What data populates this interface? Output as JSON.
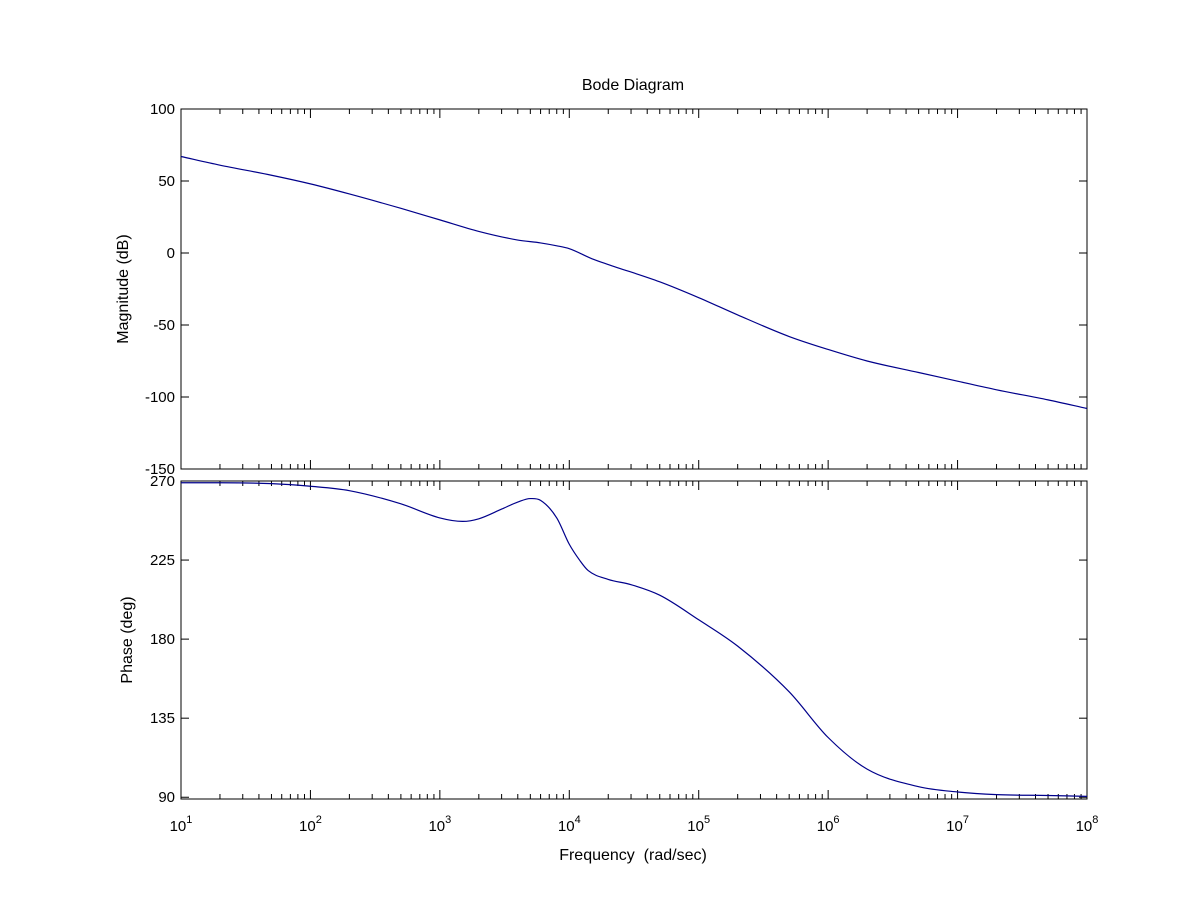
{
  "chart_data": {
    "type": "line",
    "title": "Bode Diagram",
    "xlabel": "Frequency  (rad/sec)",
    "xscale": "log",
    "xlim": [
      10,
      100000000
    ],
    "x_ticks": [
      {
        "value": 10,
        "base": "10",
        "exp": "1"
      },
      {
        "value": 100,
        "base": "10",
        "exp": "2"
      },
      {
        "value": 1000,
        "base": "10",
        "exp": "3"
      },
      {
        "value": 10000,
        "base": "10",
        "exp": "4"
      },
      {
        "value": 100000,
        "base": "10",
        "exp": "5"
      },
      {
        "value": 1000000,
        "base": "10",
        "exp": "6"
      },
      {
        "value": 10000000,
        "base": "10",
        "exp": "7"
      },
      {
        "value": 100000000,
        "base": "10",
        "exp": "8"
      }
    ],
    "line_color": "#00008b",
    "grid": false,
    "panels": [
      {
        "id": "magnitude",
        "ylabel": "Magnitude (dB)",
        "ylim": [
          -150,
          100
        ],
        "y_ticks": [
          100,
          50,
          0,
          -50,
          -100,
          -150
        ],
        "y_tick_labels": [
          "100",
          "50",
          "0",
          "-50",
          "-100",
          "-150"
        ],
        "series": {
          "x": [
            10,
            20,
            50,
            100,
            200,
            500,
            1000,
            2000,
            4000,
            6000,
            8000,
            10000,
            15000,
            20000,
            50000,
            100000,
            200000,
            500000,
            1000000,
            2000000,
            5000000,
            10000000,
            20000000,
            50000000,
            100000000
          ],
          "y": [
            67,
            61,
            54,
            48,
            41,
            31,
            23,
            15,
            9,
            7,
            5,
            3,
            -4,
            -8,
            -20,
            -31,
            -43,
            -58,
            -67,
            -75,
            -83,
            -89,
            -95,
            -102,
            -108
          ]
        }
      },
      {
        "id": "phase",
        "ylabel": "Phase (deg)",
        "ylim": [
          89,
          270
        ],
        "y_ticks": [
          270,
          225,
          180,
          135,
          90
        ],
        "y_tick_labels": [
          "270",
          "225",
          "180",
          "135",
          "90"
        ],
        "series": {
          "x": [
            10,
            20,
            50,
            100,
            200,
            500,
            1000,
            1500,
            2000,
            3000,
            4000,
            5000,
            6000,
            8000,
            10000,
            12000,
            14000,
            20000,
            30000,
            50000,
            100000,
            200000,
            500000,
            1000000,
            2000000,
            5000000,
            10000000,
            20000000,
            50000000,
            100000000
          ],
          "y": [
            269,
            269,
            268.5,
            267,
            264.5,
            257,
            249,
            247,
            248.5,
            254,
            258,
            260,
            259,
            249,
            234,
            225,
            219,
            214,
            211,
            205,
            191,
            176,
            150,
            124,
            106,
            96,
            93,
            91.5,
            91,
            90.5
          ]
        }
      }
    ]
  }
}
